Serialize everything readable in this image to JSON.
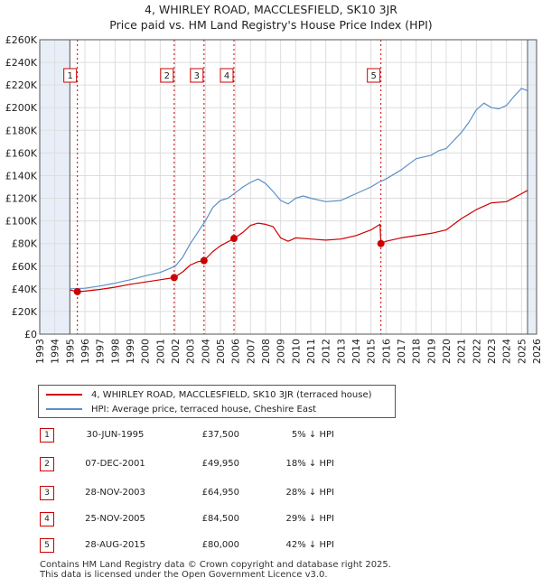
{
  "header": {
    "title": "4, WHIRLEY ROAD, MACCLESFIELD, SK10 3JR",
    "subtitle": "Price paid vs. HM Land Registry's House Price Index (HPI)"
  },
  "chart_data": {
    "type": "line",
    "title": "4, WHIRLEY ROAD, MACCLESFIELD, SK10 3JR",
    "xlim": [
      1993,
      2026
    ],
    "ylim": [
      0,
      260000
    ],
    "yticks": [
      0,
      20000,
      40000,
      60000,
      80000,
      100000,
      120000,
      140000,
      160000,
      180000,
      200000,
      220000,
      240000,
      260000
    ],
    "ytick_labels": [
      "£0",
      "£20K",
      "£40K",
      "£60K",
      "£80K",
      "£100K",
      "£120K",
      "£140K",
      "£160K",
      "£180K",
      "£200K",
      "£220K",
      "£240K",
      "£260K"
    ],
    "xtick_labels": [
      "1993",
      "1994",
      "1995",
      "1996",
      "1997",
      "1998",
      "1999",
      "2000",
      "2001",
      "2002",
      "2003",
      "2004",
      "2005",
      "2006",
      "2007",
      "2008",
      "2009",
      "2010",
      "2011",
      "2012",
      "2013",
      "2014",
      "2015",
      "2016",
      "2017",
      "2018",
      "2019",
      "2020",
      "2021",
      "2022",
      "2023",
      "2024",
      "2025",
      "2026"
    ],
    "data_range": [
      1995.0,
      2025.4
    ],
    "series": [
      {
        "name": "4, WHIRLEY ROAD, MACCLESFIELD, SK10 3JR (terraced house)",
        "color": "#cc0000",
        "x": [
          1995.0,
          1995.5,
          1996,
          1997,
          1998,
          1999,
          2000,
          2001,
          2001.93,
          2002.5,
          2003,
          2003.5,
          2003.9,
          2004.5,
          2005,
          2005.9,
          2006.5,
          2007,
          2007.5,
          2008,
          2008.5,
          2009,
          2009.5,
          2010,
          2011,
          2012,
          2013,
          2014,
          2015,
          2015.6,
          2015.66,
          2016,
          2017,
          2018,
          2019,
          2020,
          2021,
          2022,
          2023,
          2024,
          2025,
          2025.4
        ],
        "values": [
          39000,
          37500,
          38000,
          39500,
          41500,
          44000,
          46000,
          48000,
          49950,
          55000,
          61000,
          64000,
          64950,
          73000,
          78000,
          84500,
          90000,
          96000,
          98000,
          97000,
          95000,
          85000,
          82000,
          85000,
          84000,
          83000,
          84000,
          87000,
          92000,
          97000,
          80000,
          82000,
          85000,
          87000,
          89000,
          92000,
          102000,
          110000,
          116000,
          117000,
          124000,
          127000
        ]
      },
      {
        "name": "HPI: Average price, terraced house, Cheshire East",
        "color": "#5b8fc9",
        "x": [
          1995.0,
          1996,
          1997,
          1998,
          1999,
          2000,
          2001,
          2002,
          2002.5,
          2003,
          2003.5,
          2004,
          2004.5,
          2005,
          2005.5,
          2006,
          2006.5,
          2007,
          2007.5,
          2008,
          2008.5,
          2009,
          2009.5,
          2010,
          2010.5,
          2011,
          2012,
          2013,
          2014,
          2015,
          2015.5,
          2016,
          2017,
          2018,
          2019,
          2019.5,
          2020,
          2020.5,
          2021,
          2021.5,
          2022,
          2022.5,
          2023,
          2023.5,
          2024,
          2024.5,
          2025,
          2025.4
        ],
        "values": [
          40000,
          40500,
          42500,
          45000,
          48000,
          51500,
          54500,
          60000,
          68000,
          80000,
          90000,
          100000,
          112000,
          118000,
          120000,
          125000,
          130000,
          134000,
          137000,
          133000,
          126000,
          118000,
          115000,
          120000,
          122000,
          120000,
          117000,
          118000,
          124000,
          130000,
          134000,
          137000,
          145000,
          155000,
          158000,
          162000,
          164000,
          171000,
          178000,
          187000,
          198000,
          204000,
          200000,
          199000,
          202000,
          210000,
          217000,
          215000
        ]
      }
    ],
    "sales": [
      {
        "label": "1",
        "x": 1995.5,
        "price": 37500
      },
      {
        "label": "2",
        "x": 2001.93,
        "price": 49950
      },
      {
        "label": "3",
        "x": 2003.91,
        "price": 64950
      },
      {
        "label": "4",
        "x": 2005.9,
        "price": 84500
      },
      {
        "label": "5",
        "x": 2015.66,
        "price": 80000
      }
    ]
  },
  "legend": {
    "property_label": "4, WHIRLEY ROAD, MACCLESFIELD, SK10 3JR (terraced house)",
    "hpi_label": "HPI: Average price, terraced house, Cheshire East"
  },
  "transactions": [
    {
      "num": "1",
      "date": "30-JUN-1995",
      "price": "£37,500",
      "hpi": "5% ↓ HPI"
    },
    {
      "num": "2",
      "date": "07-DEC-2001",
      "price": "£49,950",
      "hpi": "18% ↓ HPI"
    },
    {
      "num": "3",
      "date": "28-NOV-2003",
      "price": "£64,950",
      "hpi": "28% ↓ HPI"
    },
    {
      "num": "4",
      "date": "25-NOV-2005",
      "price": "£84,500",
      "hpi": "29% ↓ HPI"
    },
    {
      "num": "5",
      "date": "28-AUG-2015",
      "price": "£80,000",
      "hpi": "42% ↓ HPI"
    }
  ],
  "footer": {
    "line1": "Contains HM Land Registry data © Crown copyright and database right 2025.",
    "line2": "This data is licensed under the Open Government Licence v3.0."
  },
  "colors": {
    "property": "#cc0000",
    "hpi": "#5b8fc9",
    "grid": "#dddddd",
    "shade": "#e8eef8"
  }
}
